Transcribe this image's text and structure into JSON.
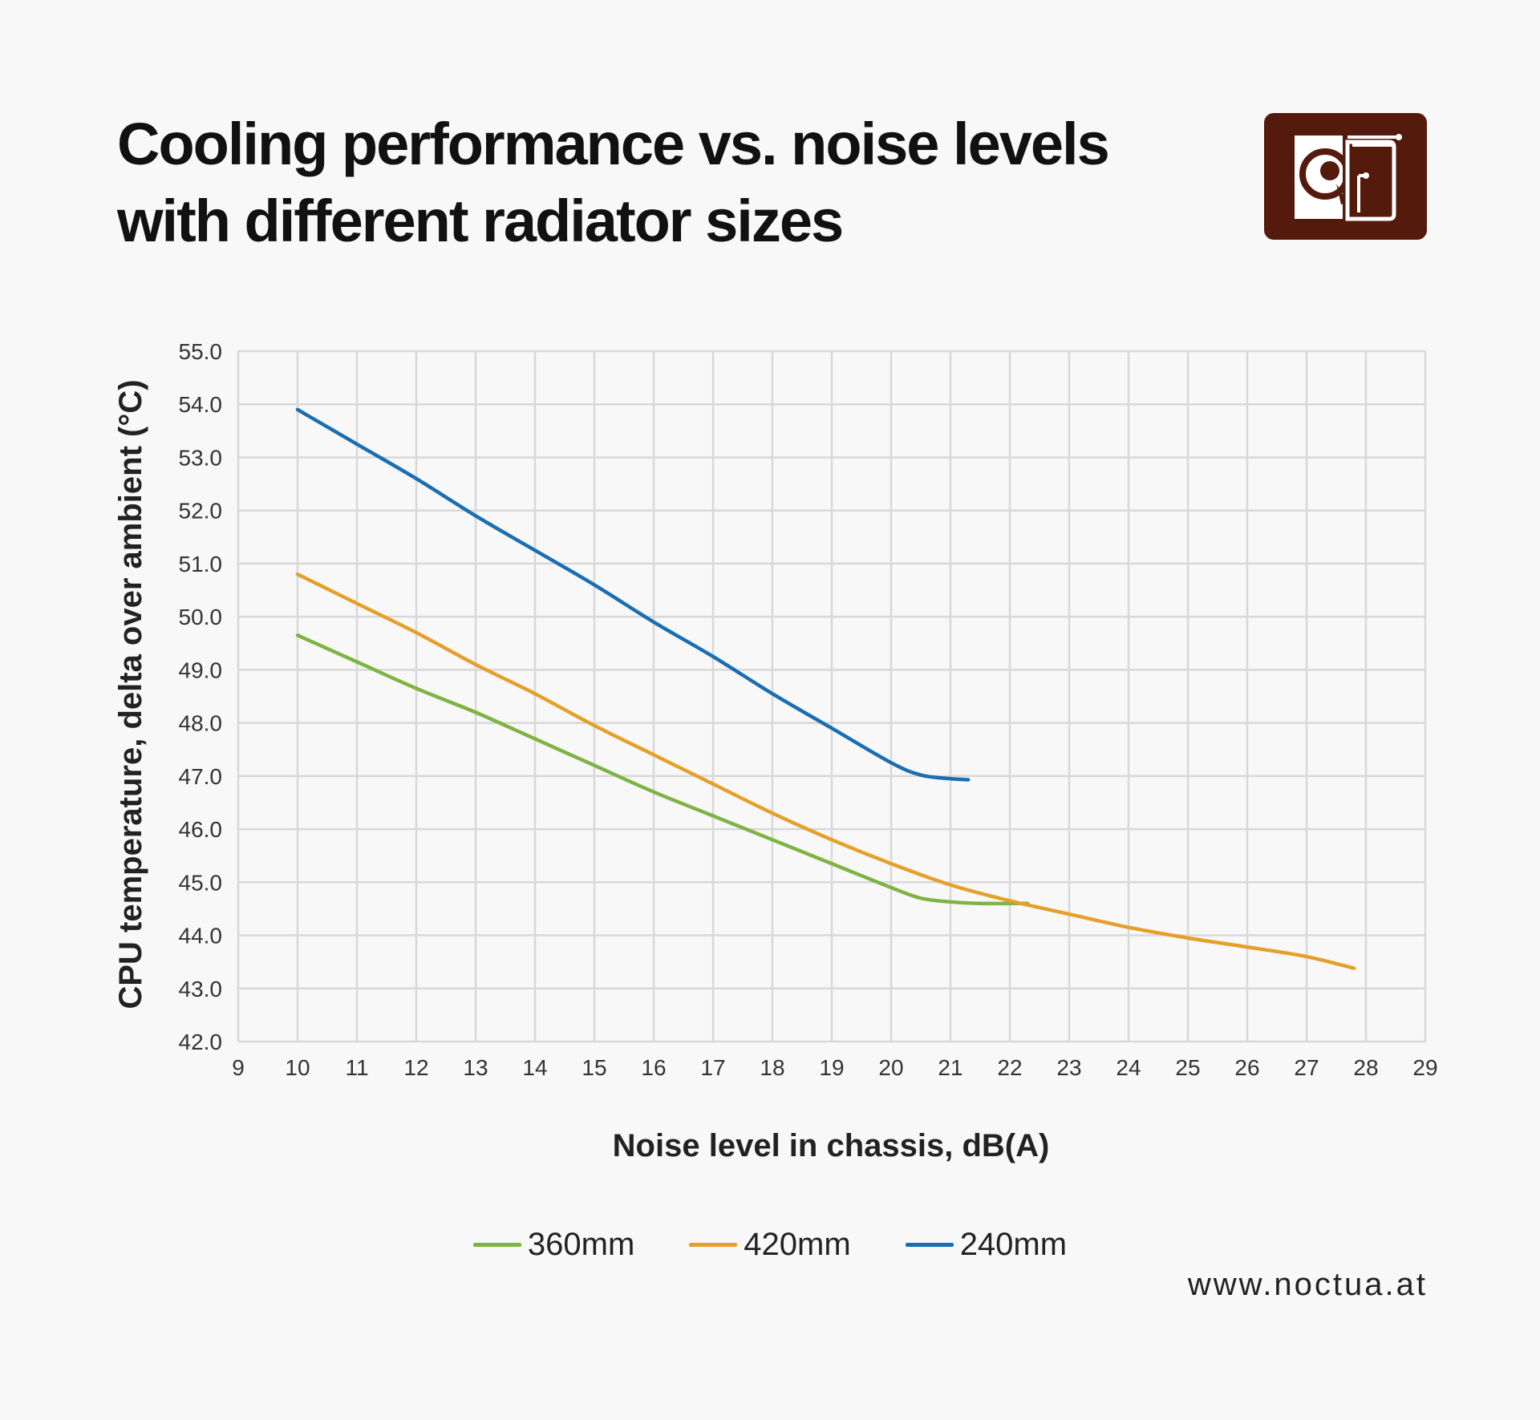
{
  "header": {
    "title_line1": "Cooling performance vs. noise levels",
    "title_line2": "with different radiator sizes"
  },
  "logo": {
    "icon": "noctua-owl-logo-icon",
    "color": "#541a0c"
  },
  "website": "www.noctua.at",
  "chart_data": {
    "type": "line",
    "xlabel": "Noise level in chassis, dB(A)",
    "ylabel": "CPU temperature, delta over ambient (°C)",
    "xlim": [
      9,
      29
    ],
    "ylim": [
      42,
      55
    ],
    "x_ticks": [
      "9",
      "10",
      "11",
      "12",
      "13",
      "14",
      "15",
      "16",
      "17",
      "18",
      "19",
      "20",
      "21",
      "22",
      "23",
      "24",
      "25",
      "26",
      "27",
      "28",
      "29"
    ],
    "y_ticks": [
      "55.0",
      "54.0",
      "53.0",
      "52.0",
      "51.0",
      "50.0",
      "49.0",
      "48.0",
      "47.0",
      "46.0",
      "45.0",
      "44.0",
      "43.0",
      "42.0"
    ],
    "grid": true,
    "legend_position": "bottom",
    "series": [
      {
        "name": "360mm",
        "color": "#7db443",
        "points": [
          [
            10,
            49.65
          ],
          [
            11,
            49.15
          ],
          [
            12,
            48.65
          ],
          [
            13,
            48.2
          ],
          [
            14,
            47.7
          ],
          [
            15,
            47.2
          ],
          [
            16,
            46.7
          ],
          [
            17,
            46.25
          ],
          [
            18,
            45.8
          ],
          [
            19,
            45.35
          ],
          [
            20,
            44.9
          ],
          [
            20.5,
            44.7
          ],
          [
            21,
            44.63
          ],
          [
            21.5,
            44.6
          ],
          [
            22,
            44.6
          ],
          [
            22.3,
            44.6
          ]
        ]
      },
      {
        "name": "420mm",
        "color": "#e5a02c",
        "points": [
          [
            10,
            50.8
          ],
          [
            11,
            50.25
          ],
          [
            12,
            49.7
          ],
          [
            13,
            49.1
          ],
          [
            14,
            48.55
          ],
          [
            15,
            47.95
          ],
          [
            16,
            47.4
          ],
          [
            17,
            46.85
          ],
          [
            18,
            46.3
          ],
          [
            19,
            45.8
          ],
          [
            20,
            45.35
          ],
          [
            21,
            44.95
          ],
          [
            22,
            44.65
          ],
          [
            23,
            44.4
          ],
          [
            24,
            44.15
          ],
          [
            25,
            43.95
          ],
          [
            26,
            43.78
          ],
          [
            27,
            43.6
          ],
          [
            27.8,
            43.38
          ]
        ]
      },
      {
        "name": "240mm",
        "color": "#1a6eb1",
        "points": [
          [
            10,
            53.9
          ],
          [
            11,
            53.25
          ],
          [
            12,
            52.6
          ],
          [
            13,
            51.9
          ],
          [
            14,
            51.25
          ],
          [
            15,
            50.6
          ],
          [
            16,
            49.9
          ],
          [
            17,
            49.25
          ],
          [
            18,
            48.55
          ],
          [
            19,
            47.9
          ],
          [
            20,
            47.25
          ],
          [
            20.5,
            47.02
          ],
          [
            21,
            46.95
          ],
          [
            21.3,
            46.93
          ]
        ]
      }
    ]
  }
}
